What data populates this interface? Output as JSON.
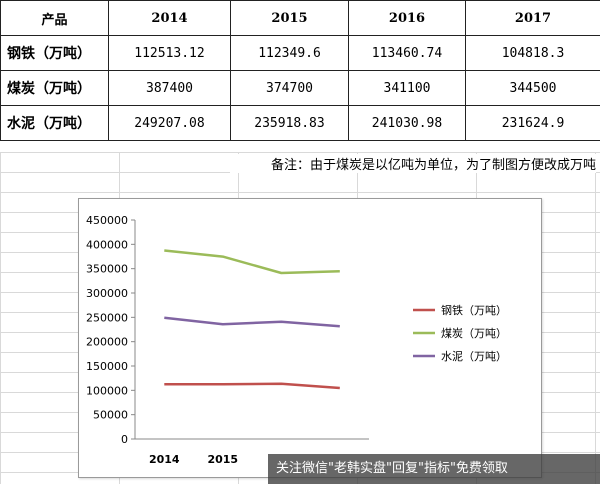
{
  "table": {
    "header": [
      "产品",
      "2014",
      "2015",
      "2016",
      "2017"
    ],
    "rows": [
      {
        "label": "钢铁（万吨）",
        "values": [
          "112513.12",
          "112349.6",
          "113460.74",
          "104818.3"
        ]
      },
      {
        "label": "煤炭（万吨）",
        "values": [
          "387400",
          "374700",
          "341100",
          "344500"
        ]
      },
      {
        "label": "水泥（万吨）",
        "values": [
          "249207.08",
          "235918.83",
          "241030.98",
          "231624.9"
        ]
      }
    ]
  },
  "note": "备注：由于煤炭是以亿吨为单位，为了制图方便改成万吨",
  "watermark": "关注微信\"老韩实盘\"回复\"指标\"免费领取",
  "chart_data": {
    "type": "line",
    "categories": [
      "2014",
      "2015",
      "2016",
      "2017"
    ],
    "visible_x_ticks": [
      "2014",
      "2015"
    ],
    "ylim": [
      0,
      450000
    ],
    "yticks": [
      0,
      50000,
      100000,
      150000,
      200000,
      250000,
      300000,
      350000,
      400000,
      450000
    ],
    "grid": false,
    "legend": "right",
    "series": [
      {
        "name": "钢铁（万吨）",
        "color": "#c0504d",
        "values": [
          112513.12,
          112349.6,
          113460.74,
          104818.3
        ]
      },
      {
        "name": "煤炭（万吨）",
        "color": "#9bbb59",
        "values": [
          387400,
          374700,
          341100,
          344500
        ]
      },
      {
        "name": "水泥（万吨）",
        "color": "#8064a2",
        "values": [
          249207.08,
          235918.83,
          241030.98,
          231624.9
        ]
      }
    ]
  }
}
